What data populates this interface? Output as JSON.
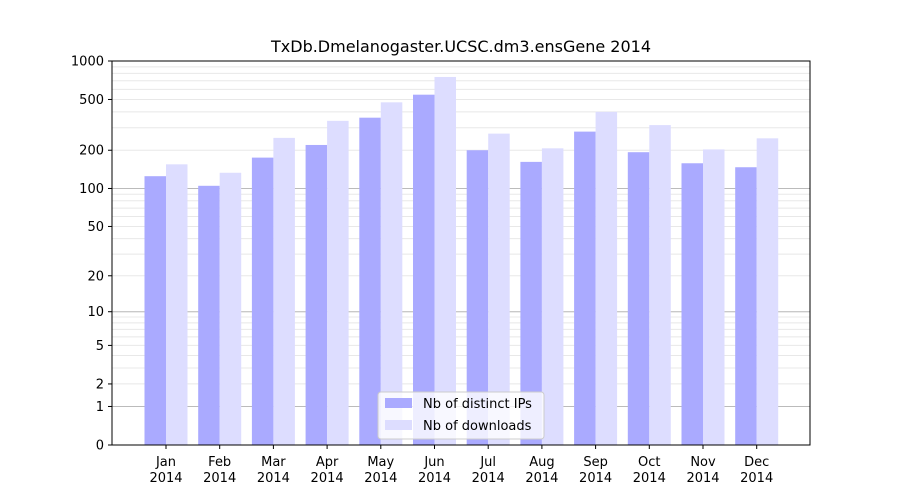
{
  "chart_data": {
    "type": "bar",
    "title": "TxDb.Dmelanogaster.UCSC.dm3.ensGene 2014",
    "xlabel": "",
    "ylabel": "",
    "yscale": "log1p",
    "ylim": [
      0,
      1000
    ],
    "yticks": [
      0,
      1,
      2,
      5,
      10,
      20,
      50,
      100,
      200,
      500,
      1000
    ],
    "ytick_labels": [
      "0",
      "1",
      "2",
      "5",
      "10",
      "20",
      "50",
      "100",
      "200",
      "500",
      "1000"
    ],
    "categories": [
      [
        "Jan",
        "2014"
      ],
      [
        "Feb",
        "2014"
      ],
      [
        "Mar",
        "2014"
      ],
      [
        "Apr",
        "2014"
      ],
      [
        "May",
        "2014"
      ],
      [
        "Jun",
        "2014"
      ],
      [
        "Jul",
        "2014"
      ],
      [
        "Aug",
        "2014"
      ],
      [
        "Sep",
        "2014"
      ],
      [
        "Oct",
        "2014"
      ],
      [
        "Nov",
        "2014"
      ],
      [
        "Dec",
        "2014"
      ]
    ],
    "series": [
      {
        "name": "Nb of distinct IPs",
        "color": "#aaaaff",
        "values": [
          125,
          105,
          175,
          220,
          360,
          545,
          200,
          162,
          280,
          193,
          158,
          147
        ]
      },
      {
        "name": "Nb of downloads",
        "color": "#ddddff",
        "values": [
          155,
          133,
          250,
          340,
          475,
          750,
          270,
          207,
          400,
          315,
          203,
          248
        ]
      }
    ],
    "grid": true,
    "legend_position": "bottom-center"
  }
}
